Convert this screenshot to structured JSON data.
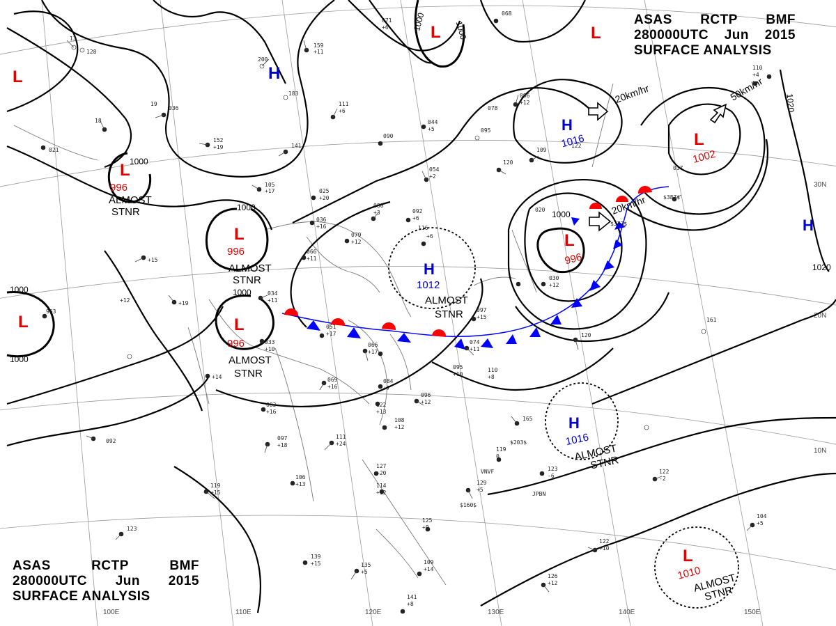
{
  "header_top": {
    "line1": [
      "ASAS",
      "RCTP",
      "BMF"
    ],
    "line2": [
      "280000UTC",
      "Jun",
      "2015"
    ],
    "line3": "SURFACE ANALYSIS"
  },
  "header_bottom": {
    "line1": [
      "ASAS",
      "RCTP",
      "BMF"
    ],
    "line2": [
      "280000UTC",
      "Jun",
      "2015"
    ],
    "line3": "SURFACE ANALYSIS"
  },
  "colors": {
    "low": "#e00000",
    "high": "#0000cc",
    "isobar": "#000000",
    "grid": "#888888",
    "coast": "#777777",
    "front_cold": "#0000ff",
    "front_warm": "#ff0000"
  },
  "pressure_systems": [
    {
      "type": "L",
      "value": "",
      "status": ""
    },
    {
      "type": "L",
      "value": "996",
      "status": "ALMOST\nSTNR"
    },
    {
      "type": "L",
      "value": "996",
      "status": "ALMOST\nSTNR"
    },
    {
      "type": "L",
      "value": "996",
      "status": "ALMOST\nSTNR"
    },
    {
      "type": "L",
      "value": "",
      "status": ""
    },
    {
      "type": "L",
      "value": "",
      "status": ""
    },
    {
      "type": "L",
      "value": "",
      "status": ""
    },
    {
      "type": "L",
      "value": "1002",
      "status": ""
    },
    {
      "type": "L",
      "value": "996",
      "status": ""
    },
    {
      "type": "L",
      "value": "1010",
      "status": "ALMOST\nSTNR"
    },
    {
      "type": "H",
      "value": "",
      "status": ""
    },
    {
      "type": "H",
      "value": "1012",
      "status": "ALMOST\nSTNR"
    },
    {
      "type": "H",
      "value": "1016",
      "status": ""
    },
    {
      "type": "H",
      "value": "1016",
      "status": "ALMOST\nSTNR"
    },
    {
      "type": "H",
      "value": "",
      "status": ""
    }
  ],
  "isobar_labels": [
    "1000",
    "1000",
    "1000",
    "1000",
    "1000",
    "1000",
    "1000",
    "1000",
    "1020",
    "1020"
  ],
  "motion_vectors": [
    "20km/hr",
    "50km/hr",
    "20km/hr"
  ],
  "latitude_labels": [
    "30N",
    "20N",
    "10N"
  ],
  "longitude_labels": [
    "100E",
    "110E",
    "120E",
    "130E",
    "140E",
    "150E"
  ],
  "station_texts": [
    "$387$",
    "$377$",
    "$203$",
    "$160$",
    "JPBN",
    "VNVF"
  ]
}
